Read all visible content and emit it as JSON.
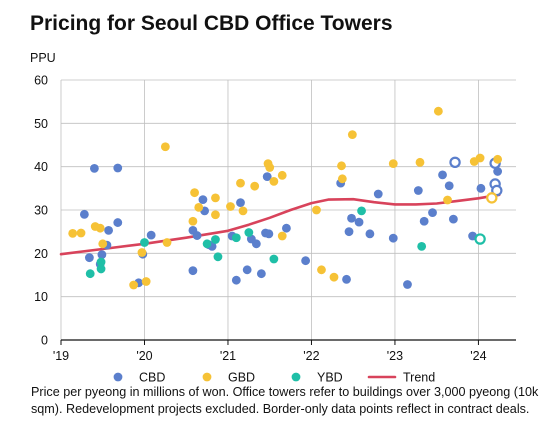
{
  "title": "Pricing for Seoul CBD Office Towers",
  "footnote": "Price per pyeong in millions of won. Office towers refer to buildings over 3,000 pyeong (10k sqm). Redevelopment projects excluded. Border-only data points reflect in contract deals.",
  "colors": {
    "CBD": "#5b7fcc",
    "GBD": "#f6c236",
    "YBD": "#1fbfa7",
    "Trend": "#d8435b",
    "grid": "#bfbfbf",
    "axis": "#111111"
  },
  "chart_data": {
    "type": "scatter",
    "title": "Pricing for Seoul CBD Office Towers",
    "ylabel": "PPU",
    "xlabel": "",
    "xlim": [
      2019.0,
      2024.45
    ],
    "ylim": [
      0,
      60
    ],
    "yticks": [
      0,
      10,
      20,
      30,
      40,
      50,
      60
    ],
    "xticks": [
      {
        "value": 2019,
        "label": "'19"
      },
      {
        "value": 2020,
        "label": "'20"
      },
      {
        "value": 2021,
        "label": "'21"
      },
      {
        "value": 2022,
        "label": "'22"
      },
      {
        "value": 2023,
        "label": "'23"
      },
      {
        "value": 2024,
        "label": "'24"
      }
    ],
    "grid": true,
    "legend": "bottom",
    "series": [
      {
        "name": "CBD",
        "color": "#5b7fcc",
        "marker": "dot",
        "points": [
          {
            "x": 2019.28,
            "y": 29.0
          },
          {
            "x": 2019.34,
            "y": 19.0
          },
          {
            "x": 2019.4,
            "y": 39.6
          },
          {
            "x": 2019.47,
            "y": 17.5
          },
          {
            "x": 2019.49,
            "y": 19.7
          },
          {
            "x": 2019.55,
            "y": 21.9
          },
          {
            "x": 2019.57,
            "y": 25.3
          },
          {
            "x": 2019.68,
            "y": 39.7
          },
          {
            "x": 2019.68,
            "y": 27.1
          },
          {
            "x": 2019.93,
            "y": 13.2
          },
          {
            "x": 2019.98,
            "y": 19.8
          },
          {
            "x": 2020.08,
            "y": 24.2
          },
          {
            "x": 2020.58,
            "y": 16.0
          },
          {
            "x": 2020.58,
            "y": 25.3
          },
          {
            "x": 2020.63,
            "y": 24.1
          },
          {
            "x": 2020.7,
            "y": 32.4
          },
          {
            "x": 2020.72,
            "y": 29.8
          },
          {
            "x": 2020.77,
            "y": 22.0
          },
          {
            "x": 2020.81,
            "y": 21.6
          },
          {
            "x": 2021.05,
            "y": 24.0
          },
          {
            "x": 2021.1,
            "y": 13.8
          },
          {
            "x": 2021.15,
            "y": 31.7
          },
          {
            "x": 2021.23,
            "y": 16.2
          },
          {
            "x": 2021.28,
            "y": 23.3
          },
          {
            "x": 2021.34,
            "y": 22.2
          },
          {
            "x": 2021.4,
            "y": 15.3
          },
          {
            "x": 2021.45,
            "y": 24.7
          },
          {
            "x": 2021.49,
            "y": 24.5
          },
          {
            "x": 2021.47,
            "y": 37.7
          },
          {
            "x": 2021.7,
            "y": 25.8
          },
          {
            "x": 2021.93,
            "y": 18.3
          },
          {
            "x": 2022.35,
            "y": 36.2
          },
          {
            "x": 2022.42,
            "y": 14.0
          },
          {
            "x": 2022.45,
            "y": 25.0
          },
          {
            "x": 2022.48,
            "y": 28.1
          },
          {
            "x": 2022.57,
            "y": 27.2
          },
          {
            "x": 2022.7,
            "y": 24.5
          },
          {
            "x": 2022.8,
            "y": 33.7
          },
          {
            "x": 2022.98,
            "y": 23.5
          },
          {
            "x": 2023.15,
            "y": 12.8
          },
          {
            "x": 2023.28,
            "y": 34.5
          },
          {
            "x": 2023.35,
            "y": 27.4
          },
          {
            "x": 2023.45,
            "y": 29.4
          },
          {
            "x": 2023.57,
            "y": 38.1
          },
          {
            "x": 2023.65,
            "y": 35.6
          },
          {
            "x": 2023.7,
            "y": 27.9
          },
          {
            "x": 2023.93,
            "y": 24.0
          },
          {
            "x": 2024.03,
            "y": 35.0
          },
          {
            "x": 2024.23,
            "y": 38.9
          }
        ]
      },
      {
        "name": "CBD",
        "color": "#5b7fcc",
        "marker": "ring",
        "points": [
          {
            "x": 2023.72,
            "y": 41.0
          },
          {
            "x": 2024.2,
            "y": 40.8
          },
          {
            "x": 2024.2,
            "y": 36.0
          },
          {
            "x": 2024.22,
            "y": 34.5
          }
        ]
      },
      {
        "name": "GBD",
        "color": "#f6c236",
        "marker": "dot",
        "points": [
          {
            "x": 2019.14,
            "y": 24.6
          },
          {
            "x": 2019.24,
            "y": 24.7
          },
          {
            "x": 2019.41,
            "y": 26.2
          },
          {
            "x": 2019.47,
            "y": 25.8
          },
          {
            "x": 2019.5,
            "y": 22.2
          },
          {
            "x": 2019.87,
            "y": 12.7
          },
          {
            "x": 2019.97,
            "y": 20.2
          },
          {
            "x": 2020.02,
            "y": 13.5
          },
          {
            "x": 2020.25,
            "y": 44.6
          },
          {
            "x": 2020.27,
            "y": 22.5
          },
          {
            "x": 2020.58,
            "y": 27.4
          },
          {
            "x": 2020.6,
            "y": 34.0
          },
          {
            "x": 2020.65,
            "y": 30.6
          },
          {
            "x": 2020.85,
            "y": 28.9
          },
          {
            "x": 2020.85,
            "y": 32.8
          },
          {
            "x": 2021.03,
            "y": 30.8
          },
          {
            "x": 2021.15,
            "y": 36.2
          },
          {
            "x": 2021.18,
            "y": 29.8
          },
          {
            "x": 2021.32,
            "y": 35.5
          },
          {
            "x": 2021.48,
            "y": 40.7
          },
          {
            "x": 2021.5,
            "y": 39.8
          },
          {
            "x": 2021.55,
            "y": 36.6
          },
          {
            "x": 2021.65,
            "y": 38.0
          },
          {
            "x": 2021.65,
            "y": 24.0
          },
          {
            "x": 2022.06,
            "y": 30.0
          },
          {
            "x": 2022.12,
            "y": 16.2
          },
          {
            "x": 2022.27,
            "y": 14.5
          },
          {
            "x": 2022.36,
            "y": 40.2
          },
          {
            "x": 2022.37,
            "y": 37.2
          },
          {
            "x": 2022.49,
            "y": 47.4
          },
          {
            "x": 2022.98,
            "y": 40.7
          },
          {
            "x": 2023.3,
            "y": 41.0
          },
          {
            "x": 2023.52,
            "y": 52.8
          },
          {
            "x": 2023.63,
            "y": 32.3
          },
          {
            "x": 2023.95,
            "y": 41.2
          },
          {
            "x": 2024.02,
            "y": 42.0
          },
          {
            "x": 2024.23,
            "y": 41.7
          }
        ]
      },
      {
        "name": "GBD",
        "color": "#f6c236",
        "marker": "ring",
        "points": [
          {
            "x": 2024.16,
            "y": 32.8
          }
        ]
      },
      {
        "name": "YBD",
        "color": "#1fbfa7",
        "marker": "dot",
        "points": [
          {
            "x": 2019.35,
            "y": 15.3
          },
          {
            "x": 2019.48,
            "y": 16.4
          },
          {
            "x": 2019.48,
            "y": 18.0
          },
          {
            "x": 2020.0,
            "y": 22.5
          },
          {
            "x": 2020.75,
            "y": 22.2
          },
          {
            "x": 2020.85,
            "y": 23.2
          },
          {
            "x": 2020.88,
            "y": 19.2
          },
          {
            "x": 2021.1,
            "y": 23.6
          },
          {
            "x": 2021.25,
            "y": 24.8
          },
          {
            "x": 2021.55,
            "y": 18.7
          },
          {
            "x": 2022.6,
            "y": 29.8
          },
          {
            "x": 2023.32,
            "y": 21.6
          }
        ]
      },
      {
        "name": "YBD",
        "color": "#1fbfa7",
        "marker": "ring",
        "points": [
          {
            "x": 2024.02,
            "y": 23.3
          }
        ]
      },
      {
        "name": "Trend",
        "color": "#d8435b",
        "marker": "line",
        "points": [
          {
            "x": 2019.0,
            "y": 19.8
          },
          {
            "x": 2019.5,
            "y": 21.0
          },
          {
            "x": 2020.0,
            "y": 22.2
          },
          {
            "x": 2020.5,
            "y": 23.6
          },
          {
            "x": 2021.0,
            "y": 25.2
          },
          {
            "x": 2021.25,
            "y": 26.6
          },
          {
            "x": 2021.5,
            "y": 28.2
          },
          {
            "x": 2021.75,
            "y": 30.0
          },
          {
            "x": 2022.0,
            "y": 31.6
          },
          {
            "x": 2022.2,
            "y": 32.4
          },
          {
            "x": 2022.5,
            "y": 32.5
          },
          {
            "x": 2022.75,
            "y": 31.8
          },
          {
            "x": 2023.0,
            "y": 31.3
          },
          {
            "x": 2023.25,
            "y": 31.3
          },
          {
            "x": 2023.5,
            "y": 31.5
          },
          {
            "x": 2023.75,
            "y": 32.1
          },
          {
            "x": 2024.0,
            "y": 32.7
          },
          {
            "x": 2024.25,
            "y": 33.5
          }
        ]
      }
    ],
    "legend_entries": [
      {
        "label": "CBD",
        "color": "#5b7fcc",
        "marker": "dot"
      },
      {
        "label": "GBD",
        "color": "#f6c236",
        "marker": "dot"
      },
      {
        "label": "YBD",
        "color": "#1fbfa7",
        "marker": "dot"
      },
      {
        "label": "Trend",
        "color": "#d8435b",
        "marker": "line"
      }
    ]
  }
}
